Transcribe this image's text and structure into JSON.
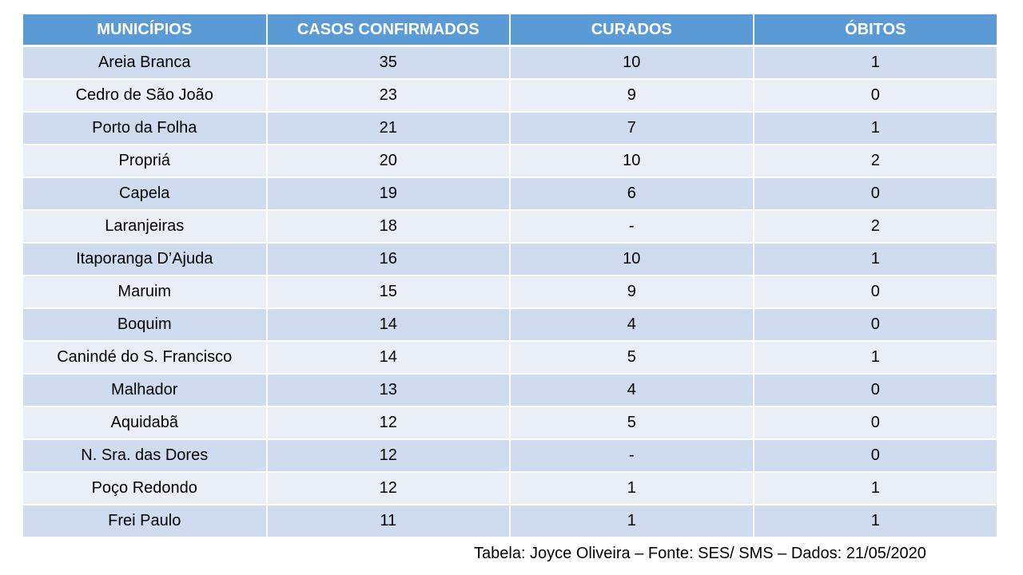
{
  "table": {
    "headers": [
      "MUNICÍPIOS",
      "CASOS CONFIRMADOS",
      "CURADOS",
      "ÓBITOS"
    ],
    "rows": [
      [
        "Areia Branca",
        "35",
        "10",
        "1"
      ],
      [
        "Cedro de São João",
        "23",
        "9",
        "0"
      ],
      [
        "Porto da Folha",
        "21",
        "7",
        "1"
      ],
      [
        "Propriá",
        "20",
        "10",
        "2"
      ],
      [
        "Capela",
        "19",
        "6",
        "0"
      ],
      [
        "Laranjeiras",
        "18",
        "-",
        "2"
      ],
      [
        "Itaporanga D’Ajuda",
        "16",
        "10",
        "1"
      ],
      [
        "Maruim",
        "15",
        "9",
        "0"
      ],
      [
        "Boquim",
        "14",
        "4",
        "0"
      ],
      [
        "Canindé do S. Francisco",
        "14",
        "5",
        "1"
      ],
      [
        "Malhador",
        "13",
        "4",
        "0"
      ],
      [
        "Aquidabã",
        "12",
        "5",
        "0"
      ],
      [
        "N. Sra. das Dores",
        "12",
        "-",
        "0"
      ],
      [
        "Poço Redondo",
        "12",
        "1",
        "1"
      ],
      [
        "Frei Paulo",
        "11",
        "1",
        "1"
      ]
    ]
  },
  "caption": "Tabela: Joyce Oliveira – Fonte: SES/ SMS – Dados: 21/05/2020",
  "colors": {
    "header_bg": "#5b9bd5",
    "row_odd_bg": "#cfdcef",
    "row_even_bg": "#e9eef7",
    "header_text": "#ffffff"
  }
}
